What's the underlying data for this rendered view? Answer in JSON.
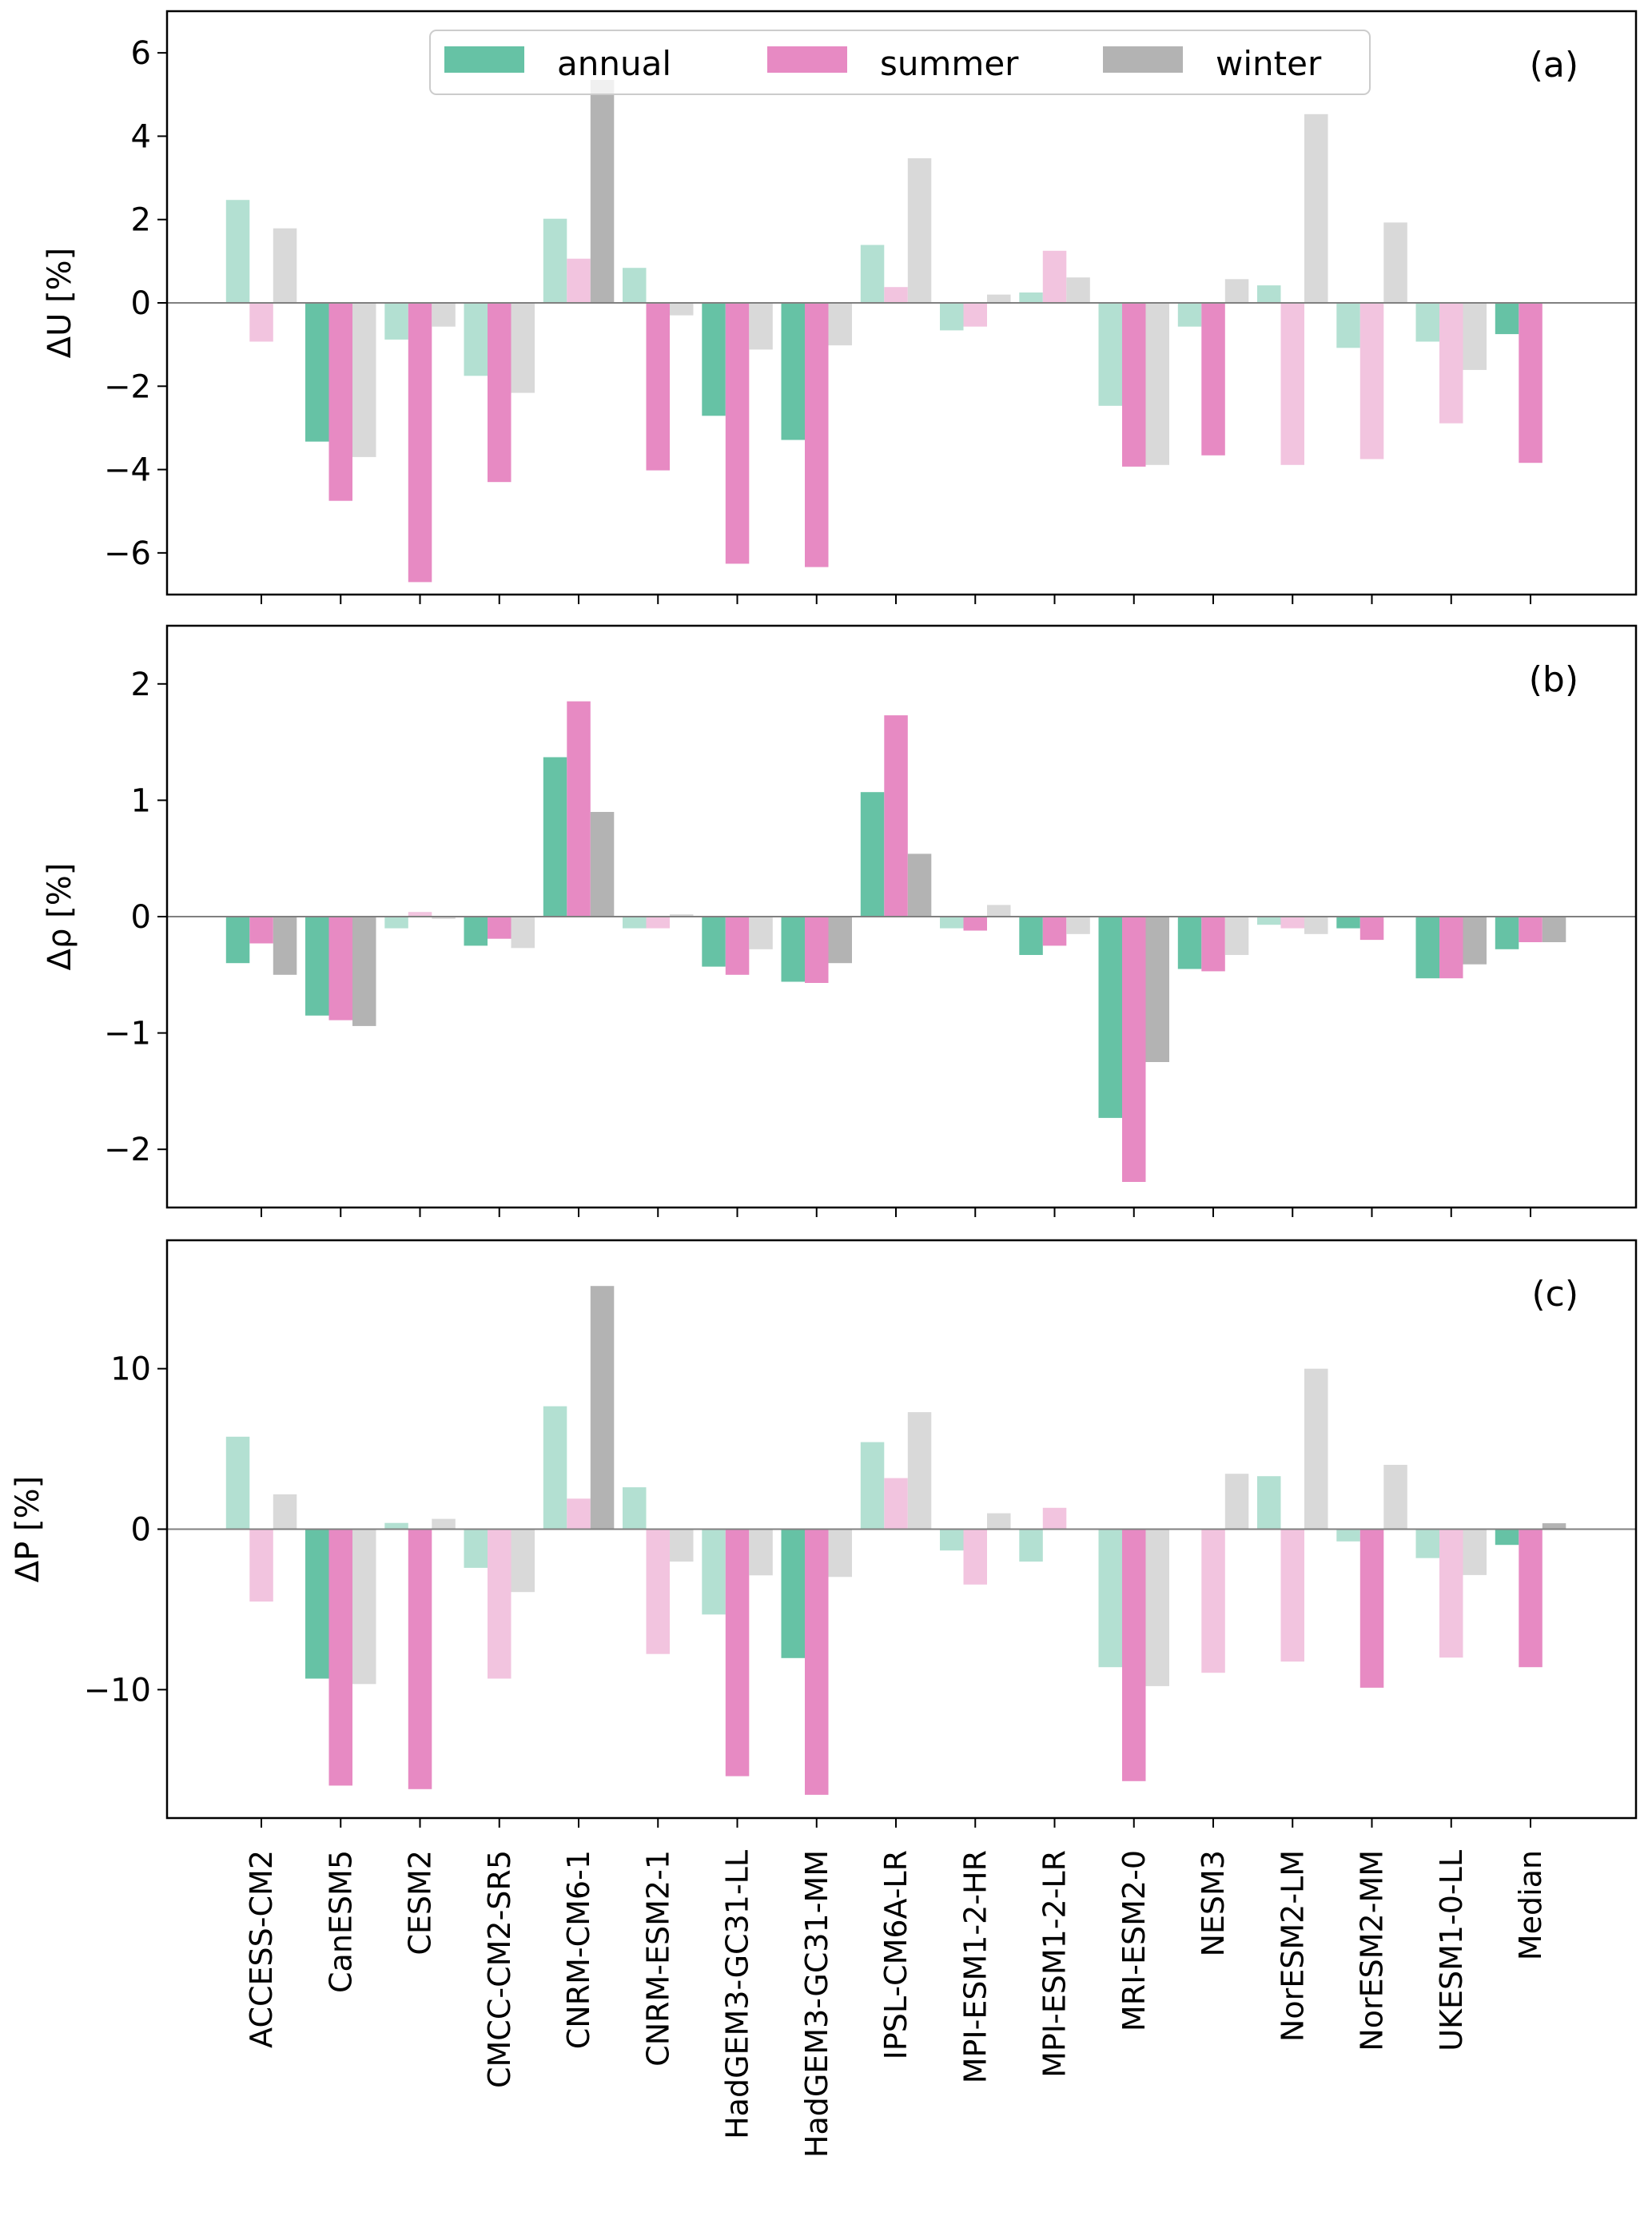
{
  "chart_data": {
    "type": "bar",
    "categories": [
      "ACCESS-CM2",
      "CanESM5",
      "CESM2",
      "CMCC-CM2-SR5",
      "CNRM-CM6-1",
      "CNRM-ESM2-1",
      "HadGEM3-GC31-LL",
      "HadGEM3-GC31-MM",
      "IPSL-CM6A-LR",
      "MPI-ESM1-2-HR",
      "MPI-ESM1-2-LR",
      "MRI-ESM2-0",
      "NESM3",
      "NorESM2-LM",
      "NorESM2-MM",
      "UKESM1-0-LL",
      "Median"
    ],
    "legend": {
      "placement": "top-center",
      "entries": [
        {
          "name": "annual",
          "color": "#66c2a5"
        },
        {
          "name": "summer",
          "color": "#e78ac3"
        },
        {
          "name": "winter",
          "color": "#b3b3b3"
        }
      ]
    },
    "note": "Faded bars (significant=false) drawn with reduced opacity",
    "panels": [
      {
        "tag": "(a)",
        "ylabel": "ΔU [%]",
        "ylim": [
          -7,
          7
        ],
        "yticks": [
          -6,
          -4,
          -2,
          0,
          2,
          4,
          6
        ],
        "ytick_labels": [
          "−6",
          "−4",
          "−2",
          "0",
          "2",
          "4",
          "6"
        ],
        "series": [
          {
            "name": "annual",
            "values": [
              2.47,
              -3.33,
              -0.88,
              -1.75,
              2.02,
              0.84,
              -2.71,
              -3.29,
              1.39,
              -0.66,
              0.25,
              -2.47,
              -0.57,
              0.42,
              -1.08,
              -0.93,
              -0.75
            ],
            "significant": [
              false,
              true,
              false,
              false,
              false,
              false,
              true,
              true,
              false,
              false,
              false,
              false,
              false,
              false,
              false,
              false,
              true
            ]
          },
          {
            "name": "summer",
            "values": [
              -0.93,
              -4.75,
              -6.7,
              -4.3,
              1.06,
              -4.02,
              -6.26,
              -6.34,
              0.38,
              -0.57,
              1.25,
              -3.93,
              -3.66,
              -3.89,
              -3.75,
              -2.89,
              -3.84
            ],
            "significant": [
              false,
              true,
              true,
              true,
              false,
              true,
              true,
              true,
              false,
              false,
              false,
              true,
              true,
              false,
              false,
              false,
              true
            ]
          },
          {
            "name": "winter",
            "values": [
              1.79,
              -3.7,
              -0.57,
              -2.16,
              5.35,
              -0.3,
              -1.12,
              -1.02,
              3.47,
              0.2,
              0.61,
              -3.89,
              0.57,
              4.53,
              1.93,
              -1.61,
              0.0
            ],
            "significant": [
              false,
              false,
              false,
              false,
              true,
              false,
              false,
              false,
              false,
              false,
              false,
              false,
              false,
              false,
              false,
              false,
              false
            ]
          }
        ]
      },
      {
        "tag": "(b)",
        "ylabel": "Δρ [%]",
        "ylim": [
          -2.5,
          2.5
        ],
        "yticks": [
          -2,
          -1,
          0,
          1,
          2
        ],
        "ytick_labels": [
          "−2",
          "−1",
          "0",
          "1",
          "2"
        ],
        "series": [
          {
            "name": "annual",
            "values": [
              -0.4,
              -0.85,
              -0.1,
              -0.25,
              1.37,
              -0.1,
              -0.43,
              -0.56,
              1.07,
              -0.1,
              -0.33,
              -1.73,
              -0.45,
              -0.07,
              -0.1,
              -0.53,
              -0.28
            ],
            "significant": [
              true,
              true,
              false,
              true,
              true,
              false,
              true,
              true,
              true,
              false,
              true,
              true,
              true,
              false,
              true,
              true,
              true
            ]
          },
          {
            "name": "summer",
            "values": [
              -0.23,
              -0.89,
              0.04,
              -0.19,
              1.85,
              -0.1,
              -0.5,
              -0.57,
              1.73,
              -0.12,
              -0.25,
              -2.28,
              -0.47,
              -0.1,
              -0.2,
              -0.53,
              -0.22
            ],
            "significant": [
              true,
              true,
              false,
              true,
              true,
              false,
              true,
              true,
              true,
              true,
              true,
              true,
              true,
              false,
              true,
              true,
              true
            ]
          },
          {
            "name": "winter",
            "values": [
              -0.5,
              -0.94,
              -0.02,
              -0.27,
              0.9,
              0.02,
              -0.28,
              -0.4,
              0.54,
              0.1,
              -0.15,
              -1.25,
              -0.33,
              -0.15,
              0.0,
              -0.41,
              -0.22
            ],
            "significant": [
              true,
              true,
              false,
              false,
              true,
              false,
              false,
              true,
              true,
              false,
              false,
              true,
              false,
              false,
              false,
              true,
              true
            ]
          }
        ]
      },
      {
        "tag": "(c)",
        "ylabel": "ΔP [%]",
        "ylim": [
          -18,
          18
        ],
        "yticks": [
          -10,
          0,
          10
        ],
        "ytick_labels": [
          "−10",
          "0",
          "10"
        ],
        "series": [
          {
            "name": "annual",
            "values": [
              5.76,
              -9.31,
              0.39,
              -2.41,
              7.66,
              2.61,
              -5.32,
              -8.03,
              5.42,
              -1.33,
              -2.02,
              -8.6,
              0.0,
              3.3,
              -0.76,
              -1.8,
              -0.98
            ],
            "significant": [
              false,
              true,
              false,
              false,
              false,
              false,
              false,
              true,
              false,
              false,
              false,
              false,
              false,
              false,
              false,
              false,
              true
            ]
          },
          {
            "name": "summer",
            "values": [
              -4.51,
              -15.98,
              -16.2,
              -9.31,
              1.9,
              -7.78,
              -15.39,
              -16.55,
              3.18,
              -3.45,
              1.33,
              -15.7,
              -8.95,
              -8.25,
              -9.88,
              -8.0,
              -8.6
            ],
            "significant": [
              false,
              true,
              true,
              false,
              false,
              false,
              true,
              true,
              false,
              false,
              false,
              true,
              false,
              false,
              true,
              false,
              true
            ]
          },
          {
            "name": "winter",
            "values": [
              2.17,
              -9.65,
              0.64,
              -3.92,
              15.15,
              -2.02,
              -2.88,
              -2.98,
              7.29,
              0.99,
              0.0,
              -9.78,
              3.45,
              10.0,
              4.01,
              -2.86,
              0.37
            ],
            "significant": [
              false,
              false,
              false,
              false,
              true,
              false,
              false,
              false,
              false,
              false,
              false,
              false,
              false,
              false,
              false,
              false,
              true
            ]
          }
        ]
      }
    ]
  }
}
